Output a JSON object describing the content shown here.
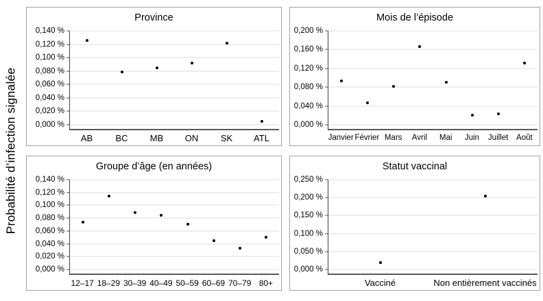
{
  "figure": {
    "y_axis_title": "Probabilité d’infection signalée"
  },
  "colors": {
    "dot": "#000000",
    "gridline": "#dcdcdc",
    "panel_border": "#a3a3a3",
    "axis_spine": "#404040",
    "text": "#000000",
    "background": "#ffffff"
  },
  "chart_data": [
    {
      "type": "scatter",
      "title": "Province",
      "categories": [
        "AB",
        "BC",
        "MB",
        "ON",
        "SK",
        "ATL"
      ],
      "values": [
        0.126,
        0.079,
        0.085,
        0.092,
        0.122,
        0.005
      ],
      "ylim": [
        0,
        0.14
      ],
      "grid": true,
      "legend": "none",
      "ytick_values": [
        0,
        0.02,
        0.04,
        0.06,
        0.08,
        0.1,
        0.12,
        0.14
      ],
      "ytick_labels": [
        "0,000 %",
        "0,020 %",
        "0,040 %",
        "0,060 %",
        "0,080 %",
        "0,100 %",
        "0,120 %",
        "0,140 %"
      ]
    },
    {
      "type": "scatter",
      "title": "Mois de l’épisode",
      "categories": [
        "Janvier",
        "Février",
        "Mars",
        "Avril",
        "Mai",
        "Juin",
        "Juillet",
        "Août"
      ],
      "values": [
        0.094,
        0.046,
        0.082,
        0.166,
        0.091,
        0.021,
        0.024,
        0.131
      ],
      "ylim": [
        0,
        0.2
      ],
      "grid": true,
      "legend": "none",
      "ytick_values": [
        0,
        0.04,
        0.08,
        0.12,
        0.16,
        0.2
      ],
      "ytick_labels": [
        "0,000 %",
        "0,040 %",
        "0,080 %",
        "0,120 %",
        "0,160 %",
        "0,200 %"
      ]
    },
    {
      "type": "scatter",
      "title": "Groupe d’âge (en années)",
      "categories": [
        "12–17",
        "18–29",
        "30–39",
        "40–49",
        "50–59",
        "60–69",
        "70–79",
        "80+"
      ],
      "values": [
        0.074,
        0.114,
        0.089,
        0.084,
        0.071,
        0.045,
        0.033,
        0.05
      ],
      "ylim": [
        0,
        0.14
      ],
      "grid": true,
      "legend": "none",
      "ytick_values": [
        0,
        0.02,
        0.04,
        0.06,
        0.08,
        0.1,
        0.12,
        0.14
      ],
      "ytick_labels": [
        "0,000 %",
        "0,020 %",
        "0,040 %",
        "0,060 %",
        "0,080 %",
        "0,100 %",
        "0,120 %",
        "0,140 %"
      ]
    },
    {
      "type": "scatter",
      "title": "Statut vaccinal",
      "categories": [
        "Vacciné",
        "Non entièrement vaccinés"
      ],
      "values": [
        0.02,
        0.205
      ],
      "ylim": [
        0,
        0.25
      ],
      "grid": true,
      "legend": "none",
      "ytick_values": [
        0,
        0.05,
        0.1,
        0.15,
        0.2,
        0.25
      ],
      "ytick_labels": [
        "0,000 %",
        "0,050 %",
        "0,100 %",
        "0,150 %",
        "0,200 %",
        "0,250 %"
      ]
    }
  ]
}
